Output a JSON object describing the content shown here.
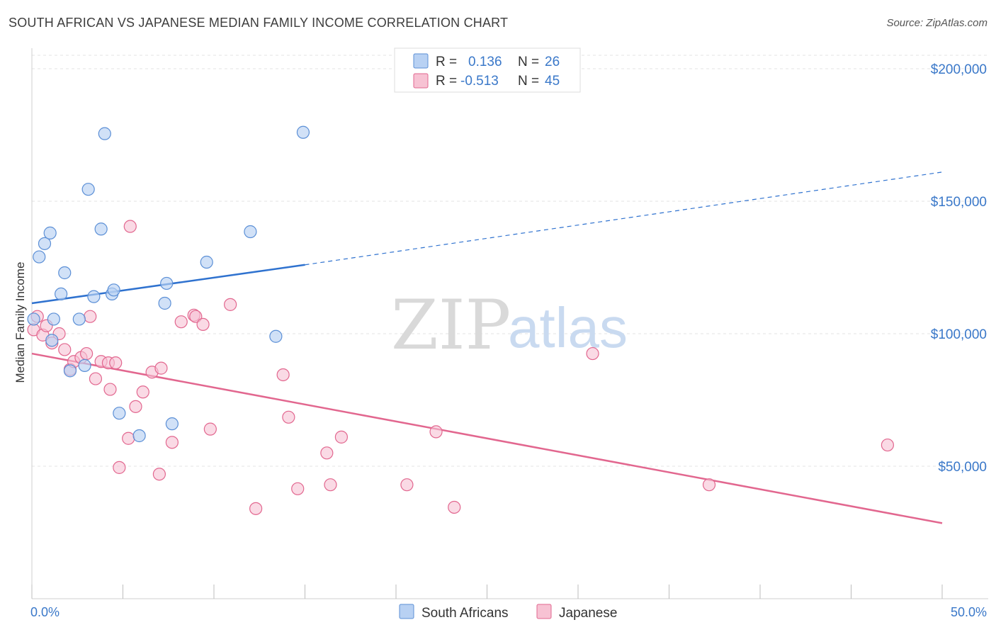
{
  "header": {
    "title": "SOUTH AFRICAN VS JAPANESE MEDIAN FAMILY INCOME CORRELATION CHART",
    "source": "Source: ZipAtlas.com"
  },
  "watermark": {
    "part1": "ZIP",
    "part2": "atlas"
  },
  "colors": {
    "south_africans": "#5b8fd6",
    "south_africans_fill": "#b8d1f3",
    "japanese": "#e2678f",
    "japanese_fill": "#f7c2d3",
    "blue_line": "#2f72cf",
    "pink_line": "#e2678f",
    "tick_text": "#3a78c9"
  },
  "legend": {
    "rows": [
      {
        "r_label": "R = ",
        "r_value": "0.136",
        "n_label": "N = ",
        "n_value": "26"
      },
      {
        "r_label": "R = ",
        "r_value": "-0.513",
        "n_label": "N = ",
        "n_value": "45"
      }
    ]
  },
  "bottom_legend": {
    "south_africans": "South Africans",
    "japanese": "Japanese"
  },
  "chart_data": {
    "type": "scatter",
    "title": "SOUTH AFRICAN VS JAPANESE MEDIAN FAMILY INCOME CORRELATION CHART",
    "xlabel": "",
    "ylabel": "Median Family Income",
    "xlim": [
      0,
      50
    ],
    "ylim": [
      0,
      210000
    ],
    "x_tick_labels": [
      "0.0%",
      "50.0%"
    ],
    "y_ticks": [
      50000,
      100000,
      150000,
      200000
    ],
    "y_tick_labels": [
      "$50,000",
      "$100,000",
      "$150,000",
      "$200,000"
    ],
    "grid": true,
    "legend_position": "top-center",
    "series": [
      {
        "name": "South Africans",
        "r": 0.136,
        "n": 26,
        "trend": {
          "x": [
            0,
            15
          ],
          "y": [
            111500,
            126000
          ],
          "dashed_to": [
            50,
            161000
          ]
        },
        "points": [
          [
            0.1,
            105500
          ],
          [
            0.4,
            129000
          ],
          [
            0.7,
            134000
          ],
          [
            1.0,
            138000
          ],
          [
            1.2,
            105500
          ],
          [
            1.1,
            97500
          ],
          [
            1.6,
            115000
          ],
          [
            1.8,
            123000
          ],
          [
            2.6,
            105500
          ],
          [
            2.1,
            86000
          ],
          [
            2.9,
            88000
          ],
          [
            3.4,
            114000
          ],
          [
            4.0,
            175500
          ],
          [
            3.1,
            154500
          ],
          [
            3.8,
            139500
          ],
          [
            4.4,
            115000
          ],
          [
            4.5,
            116500
          ],
          [
            4.8,
            70000
          ],
          [
            5.9,
            61500
          ],
          [
            7.3,
            111500
          ],
          [
            7.4,
            119000
          ],
          [
            7.7,
            66000
          ],
          [
            9.6,
            127000
          ],
          [
            12.0,
            138500
          ],
          [
            13.4,
            99000
          ],
          [
            14.9,
            176000
          ]
        ]
      },
      {
        "name": "Japanese",
        "r": -0.513,
        "n": 45,
        "trend": {
          "x": [
            0,
            50
          ],
          "y": [
            92500,
            28500
          ]
        },
        "points": [
          [
            0.1,
            101500
          ],
          [
            0.3,
            106500
          ],
          [
            0.6,
            99500
          ],
          [
            0.8,
            103000
          ],
          [
            1.1,
            96500
          ],
          [
            1.5,
            100000
          ],
          [
            1.8,
            94000
          ],
          [
            2.1,
            86500
          ],
          [
            2.3,
            89500
          ],
          [
            2.7,
            91000
          ],
          [
            3.0,
            92500
          ],
          [
            3.2,
            106500
          ],
          [
            3.5,
            83000
          ],
          [
            3.8,
            89500
          ],
          [
            4.2,
            89000
          ],
          [
            4.3,
            79000
          ],
          [
            4.6,
            89000
          ],
          [
            4.8,
            49500
          ],
          [
            5.3,
            60500
          ],
          [
            5.4,
            140500
          ],
          [
            5.7,
            72500
          ],
          [
            6.1,
            78000
          ],
          [
            6.6,
            85500
          ],
          [
            7.0,
            47000
          ],
          [
            7.1,
            87000
          ],
          [
            7.7,
            59000
          ],
          [
            8.2,
            104500
          ],
          [
            8.9,
            107000
          ],
          [
            9.0,
            106500
          ],
          [
            9.4,
            103500
          ],
          [
            9.8,
            64000
          ],
          [
            10.9,
            111000
          ],
          [
            12.3,
            34000
          ],
          [
            13.8,
            84500
          ],
          [
            14.1,
            68500
          ],
          [
            14.6,
            41500
          ],
          [
            16.2,
            55000
          ],
          [
            16.4,
            43000
          ],
          [
            17.0,
            61000
          ],
          [
            20.6,
            43000
          ],
          [
            22.2,
            63000
          ],
          [
            23.2,
            34500
          ],
          [
            30.8,
            92500
          ],
          [
            37.2,
            43000
          ],
          [
            47.0,
            58000
          ]
        ]
      }
    ]
  }
}
